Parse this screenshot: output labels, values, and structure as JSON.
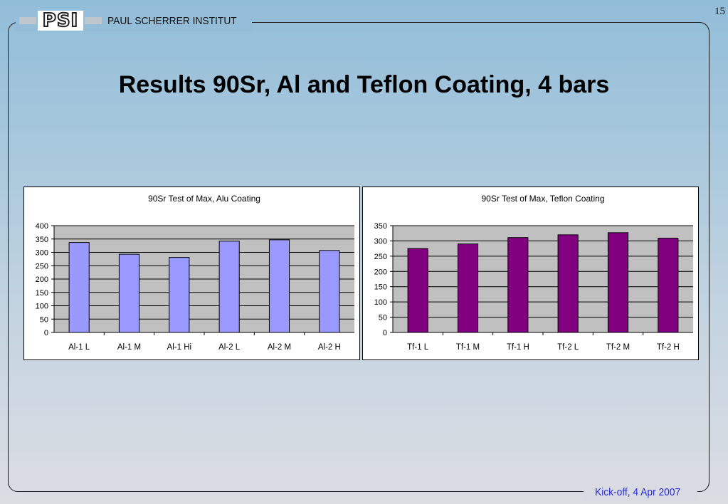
{
  "header": {
    "logo_text": "PSI",
    "institute": "PAUL SCHERRER INSTITUT",
    "page_number": "15"
  },
  "title": "Results 90Sr, Al and Teflon Coating, 4 bars",
  "footer": "Kick-off, 4 Apr 2007",
  "colors": {
    "alu_bar": "#9999ff",
    "teflon_bar": "#800080",
    "plot_bg": "#c0c0c0",
    "footer_text": "#2b2bd6"
  },
  "chart_data": [
    {
      "type": "bar",
      "title": "90Sr Test of Max, Alu Coating",
      "categories": [
        "Al-1 L",
        "Al-1 M",
        "Al-1 Hi",
        "Al-2 L",
        "Al-2 M",
        "Al-2 H"
      ],
      "values": [
        337,
        293,
        281,
        342,
        347,
        307
      ],
      "ylim": [
        0,
        400
      ],
      "yticks": [
        0,
        50,
        100,
        150,
        200,
        250,
        300,
        350,
        400
      ],
      "grid": true,
      "legend": "none"
    },
    {
      "type": "bar",
      "title": "90Sr Test of Max, Teflon Coating",
      "categories": [
        "Tf-1 L",
        "Tf-1 M",
        "Tf-1 H",
        "Tf-2 L",
        "Tf-2 M",
        "Tf-2 H"
      ],
      "values": [
        275,
        290,
        311,
        320,
        327,
        309
      ],
      "ylim": [
        0,
        350
      ],
      "yticks": [
        0,
        50,
        100,
        150,
        200,
        250,
        300,
        350
      ],
      "grid": true,
      "legend": "none"
    }
  ]
}
